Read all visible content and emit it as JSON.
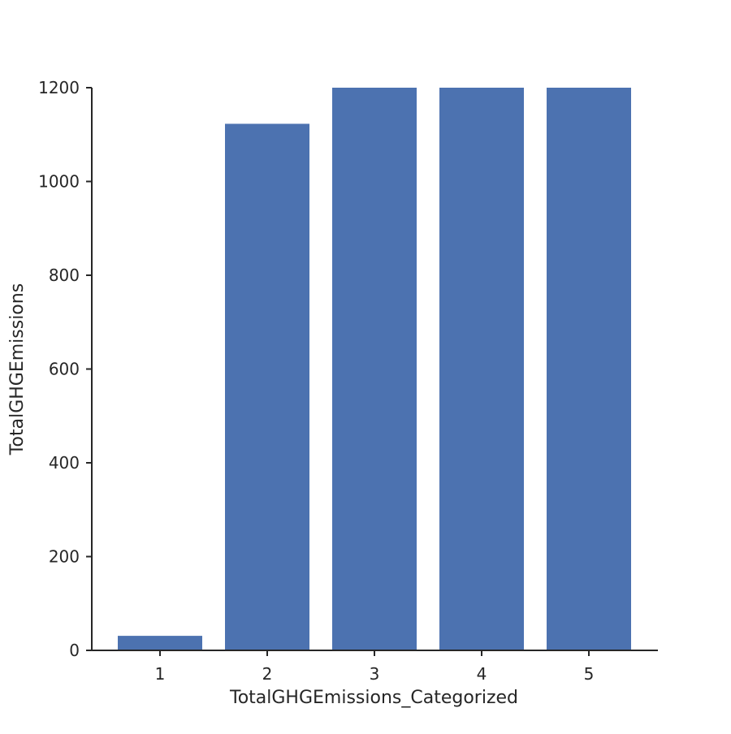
{
  "chart_data": {
    "type": "bar",
    "title": "",
    "xlabel": "TotalGHGEmissions_Categorized",
    "ylabel": "TotalGHGEmissions",
    "categories": [
      "1",
      "2",
      "3",
      "4",
      "5"
    ],
    "values": [
      31,
      1123,
      1200,
      1200,
      1200
    ],
    "ylim": [
      0,
      1200
    ],
    "yticks": [
      "0",
      "200",
      "400",
      "600",
      "800",
      "1000",
      "1200"
    ],
    "grid": false,
    "bar_color": "#4c72b0"
  }
}
